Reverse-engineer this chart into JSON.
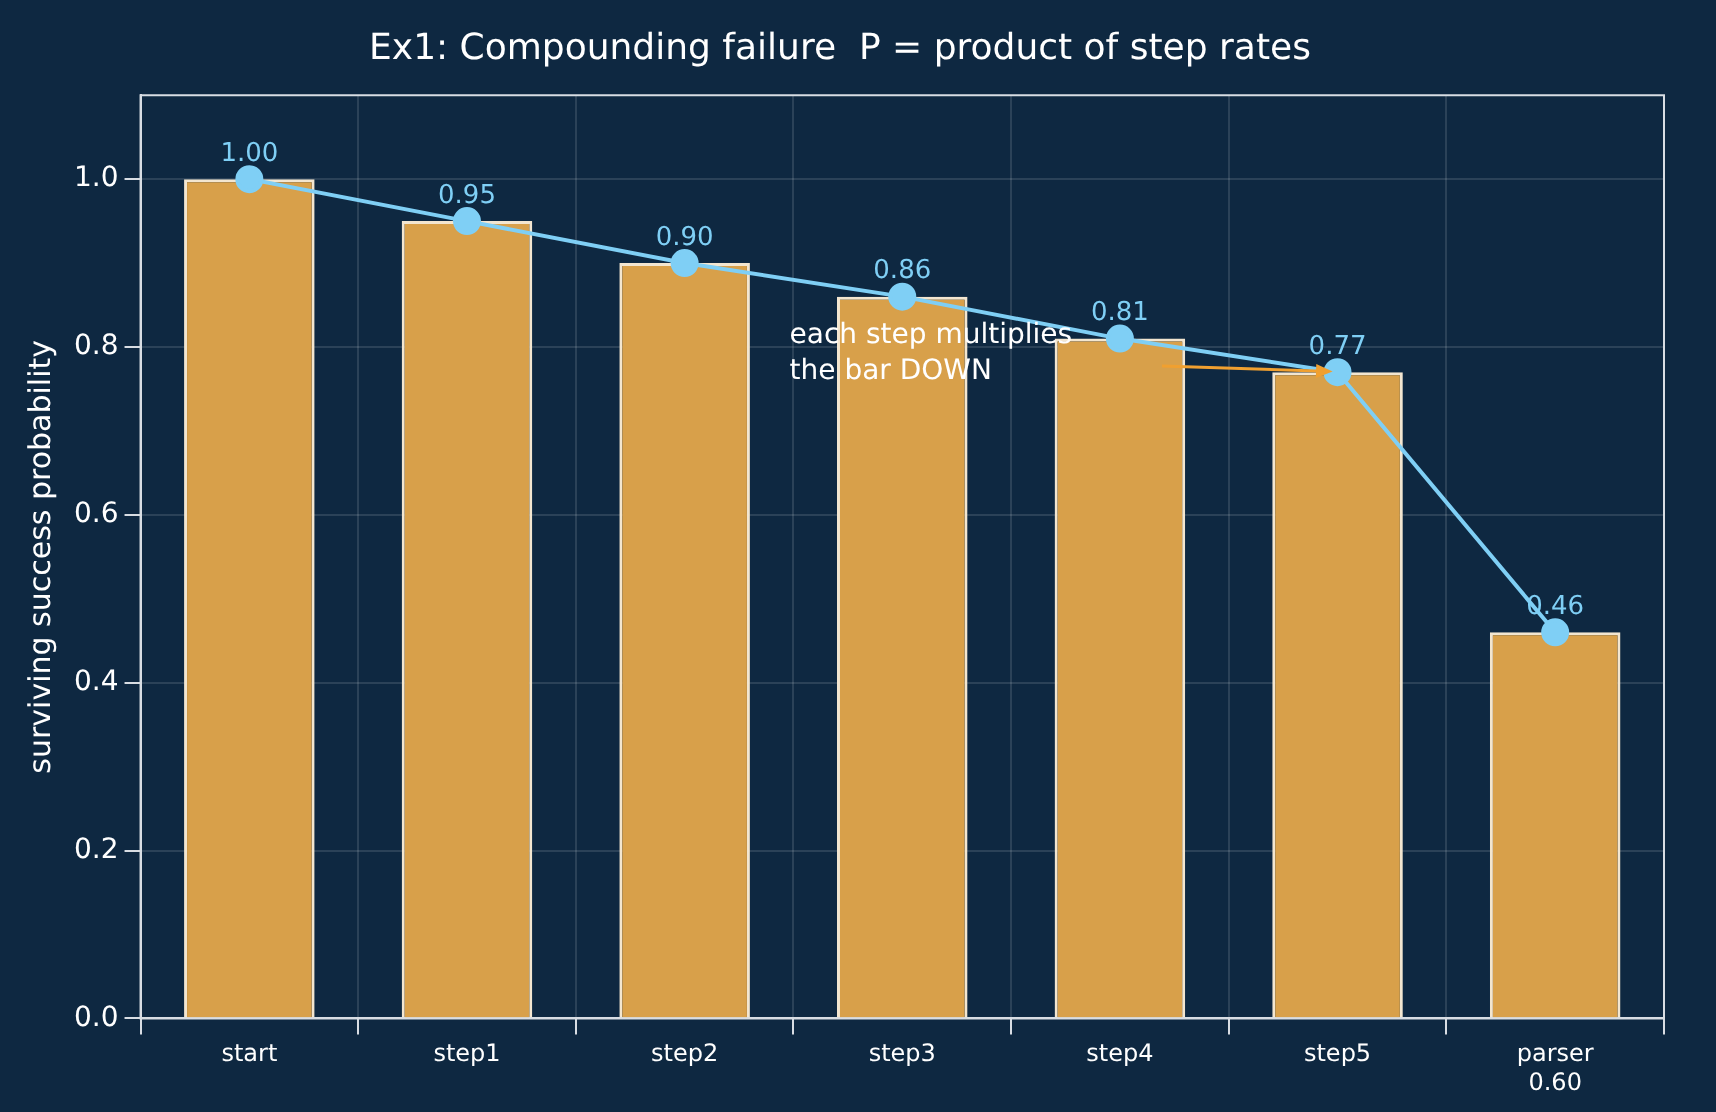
{
  "chart_data": {
    "type": "bar",
    "title": "Ex1: Compounding failure  P = product of step rates",
    "ylabel": "surviving success probability",
    "categories": [
      "start",
      "step1",
      "step2",
      "step3",
      "step4",
      "step5",
      "parser\n0.60"
    ],
    "series": [
      {
        "color": "#d8a04a",
        "values": [
          1.0,
          0.95,
          0.9,
          0.86,
          0.81,
          0.77,
          0.46
        ]
      },
      {
        "type": "line",
        "color": "#7fcff5",
        "values": [
          1.0,
          0.95,
          0.9,
          0.86,
          0.81,
          0.77,
          0.46
        ],
        "value_labels": [
          "1.00",
          "0.95",
          "0.90",
          "0.86",
          "0.81",
          "0.77",
          "0.46"
        ],
        "marker": "circle",
        "line_style": "solid"
      }
    ],
    "ylim": [
      0,
      1.1
    ],
    "yticks": [
      {
        "value": 0,
        "label": "0.0"
      },
      {
        "value": 0.2,
        "label": "0.2"
      },
      {
        "value": 0.4,
        "label": "0.4"
      },
      {
        "value": 0.6,
        "label": "0.6"
      },
      {
        "value": 0.8,
        "label": "0.8"
      },
      {
        "value": 1.0,
        "label": "1.0"
      }
    ],
    "grid": true,
    "annotations": [
      "each step multiplies\nthe bar DOWN"
    ]
  }
}
